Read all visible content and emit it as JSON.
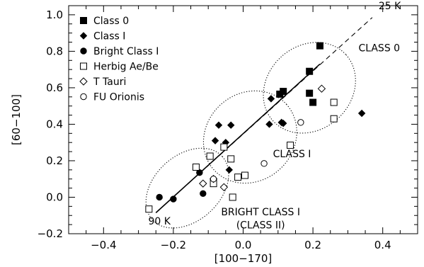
{
  "chart_data": {
    "type": "scatter",
    "xlabel": "[100−170]",
    "ylabel": "[60−100]",
    "xlim": [
      -0.5,
      0.5
    ],
    "ylim": [
      -0.2,
      1.05
    ],
    "xticks": [
      -0.4,
      -0.2,
      0.0,
      0.2,
      0.4
    ],
    "xtick_labels": [
      "−0.4",
      "−0.2",
      "0.0",
      "0.2",
      "0.4"
    ],
    "yticks": [
      -0.2,
      0.0,
      0.2,
      0.4,
      0.6,
      0.8,
      1.0
    ],
    "ytick_labels": [
      "−0.2",
      "0.0",
      "0.2",
      "0.4",
      "0.6",
      "0.8",
      "1.0"
    ],
    "legend_position": "top-left",
    "series": [
      {
        "name": "Class 0",
        "marker": "filled-square",
        "points": [
          [
            0.22,
            0.83
          ],
          [
            0.19,
            0.69
          ],
          [
            0.19,
            0.57
          ],
          [
            0.2,
            0.52
          ],
          [
            0.115,
            0.58
          ],
          [
            0.105,
            0.565
          ]
        ]
      },
      {
        "name": "Class I",
        "marker": "filled-diamond",
        "points": [
          [
            0.34,
            0.46
          ],
          [
            0.11,
            0.41
          ],
          [
            0.115,
            0.405
          ],
          [
            0.08,
            0.54
          ],
          [
            0.075,
            0.4
          ],
          [
            -0.07,
            0.395
          ],
          [
            -0.035,
            0.395
          ],
          [
            -0.08,
            0.31
          ],
          [
            -0.04,
            0.15
          ],
          [
            -0.05,
            0.3
          ]
        ]
      },
      {
        "name": "Bright Class I",
        "marker": "filled-circle",
        "points": [
          [
            -0.24,
            0.0
          ],
          [
            -0.2,
            -0.01
          ],
          [
            -0.125,
            0.135
          ],
          [
            -0.115,
            0.02
          ],
          [
            -0.085,
            0.08
          ]
        ]
      },
      {
        "name": "Herbig Ae/Be",
        "marker": "open-square",
        "points": [
          [
            0.26,
            0.52
          ],
          [
            0.26,
            0.43
          ],
          [
            0.135,
            0.285
          ],
          [
            -0.095,
            0.225
          ],
          [
            -0.055,
            0.275
          ],
          [
            -0.035,
            0.21
          ],
          [
            -0.135,
            0.165
          ],
          [
            -0.085,
            0.075
          ],
          [
            -0.015,
            0.11
          ],
          [
            0.005,
            0.12
          ],
          [
            -0.03,
            0.0
          ],
          [
            -0.27,
            -0.065
          ]
        ]
      },
      {
        "name": "T Tauri",
        "marker": "open-diamond",
        "points": [
          [
            0.225,
            0.595
          ],
          [
            -0.085,
            0.1
          ],
          [
            -0.055,
            0.055
          ],
          [
            -0.115,
            0.075
          ]
        ]
      },
      {
        "name": "FU Orionis",
        "marker": "open-circle",
        "points": [
          [
            0.165,
            0.41
          ],
          [
            0.06,
            0.185
          ],
          [
            -0.085,
            0.1
          ]
        ]
      }
    ],
    "lines": [
      {
        "label": "25 K",
        "style": "dashed",
        "from": [
          -0.25,
          -0.085
        ],
        "to": [
          0.37,
          0.985
        ]
      },
      {
        "style": "solid",
        "from": [
          -0.25,
          -0.085
        ],
        "to": [
          0.22,
          0.73
        ]
      }
    ],
    "ellipses": [
      {
        "label": "CLASS 0",
        "center": [
          0.19,
          0.6
        ],
        "semi_x": 0.12,
        "semi_y": 0.27
      },
      {
        "label": "CLASS I",
        "center": [
          0.02,
          0.33
        ],
        "semi_x": 0.14,
        "semi_y": 0.24
      },
      {
        "label": "BRIGHT CLASS I",
        "center": [
          -0.16,
          0.05
        ],
        "semi_x": 0.135,
        "semi_y": 0.18
      }
    ],
    "annotations": [
      {
        "text": "25 K",
        "at": [
          0.42,
          1.03
        ]
      },
      {
        "text": "CLASS 0",
        "at": [
          0.39,
          0.8
        ]
      },
      {
        "text": "CLASS I",
        "at": [
          0.14,
          0.22
        ]
      },
      {
        "text": "BRIGHT CLASS I",
        "at": [
          0.05,
          -0.1
        ]
      },
      {
        "text": "(CLASS II)",
        "at": [
          0.05,
          -0.17
        ]
      },
      {
        "text": "90 K",
        "at": [
          -0.24,
          -0.15
        ]
      }
    ]
  }
}
